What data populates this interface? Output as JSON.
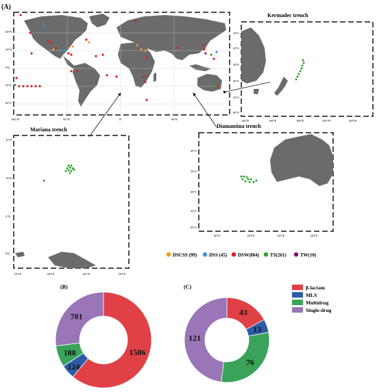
{
  "figure_label": "(A)",
  "maps": {
    "world": {
      "lat_labels": [
        "60°N",
        "30°N",
        "EQ",
        "30°S",
        "60°S"
      ],
      "lon_labels": [
        "180°W",
        "90°W",
        "0°",
        "90°E"
      ]
    },
    "kermadec": {
      "title": "Kermadec trench",
      "lat_labels": [
        "10°S",
        "20°S",
        "30°S",
        "40°S",
        "50°S",
        "60°S"
      ],
      "lon_labels": [
        "140°E",
        "160°E",
        "180°E",
        "160°W",
        "140°W"
      ]
    },
    "mariana": {
      "title": "Mariana trench",
      "lat_labels": [
        "15°N",
        "10°N",
        "5°N",
        "EQ"
      ],
      "lon_labels": [
        "135°E",
        "140°E",
        "145°E",
        "150°E"
      ]
    },
    "diamantina": {
      "title": "Diamantina trench",
      "lat_labels": [
        "20°S",
        "30°S",
        "40°S",
        "50°S",
        "60°S"
      ],
      "lon_labels": [
        "80°E",
        "100°E",
        "120°E",
        "140°E"
      ]
    }
  },
  "legend_sites": [
    {
      "label": "DSCSS (99)",
      "color": "#f39c12"
    },
    {
      "label": "DSS (45)",
      "color": "#3498db"
    },
    {
      "label": "DSW(884)",
      "color": "#d91c1c"
    },
    {
      "label": "TS(261)",
      "color": "#2ca02c"
    },
    {
      "label": "TW(10)",
      "color": "#8b0a6e"
    }
  ],
  "legend_categories": [
    {
      "label": "β-lactam",
      "color": "#e04146"
    },
    {
      "label": "MLS",
      "color": "#2c5ca8"
    },
    {
      "label": "Multidrug",
      "color": "#3aa35a"
    },
    {
      "label": "Single-drug",
      "color": "#9a75b7"
    }
  ],
  "chart_data": [
    {
      "type": "pie",
      "title": "(B)",
      "categories": [
        "β-lactam",
        "MLS",
        "Multidrug",
        "Single-drug"
      ],
      "values": [
        1586,
        124,
        188,
        701
      ],
      "labels": [
        "1586",
        "124",
        "188",
        "701"
      ]
    },
    {
      "type": "pie",
      "title": "(C)",
      "categories": [
        "β-lactam",
        "MLS",
        "Multidrug",
        "Single-drug"
      ],
      "values": [
        43,
        13,
        76,
        121
      ],
      "labels": [
        "43",
        "13",
        "76",
        "121"
      ]
    }
  ]
}
